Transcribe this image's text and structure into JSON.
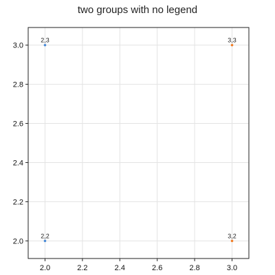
{
  "chart_data": {
    "type": "scatter",
    "title": "two groups with no legend",
    "xlabel": "",
    "ylabel": "",
    "xlim": [
      1.91,
      3.09
    ],
    "ylim": [
      1.91,
      3.09
    ],
    "x_ticks": [
      2.0,
      2.2,
      2.4,
      2.6,
      2.8,
      3.0
    ],
    "y_ticks": [
      2.0,
      2.2,
      2.4,
      2.6,
      2.8,
      3.0
    ],
    "x_tick_labels": [
      "2.0",
      "2.2",
      "2.4",
      "2.6",
      "2.8",
      "3.0"
    ],
    "y_tick_labels": [
      "2.0",
      "2.2",
      "2.4",
      "2.6",
      "2.8",
      "3.0"
    ],
    "grid": true,
    "legend": "none",
    "series": [
      {
        "color": "#4c8bd6",
        "points": [
          {
            "x": 2,
            "y": 3,
            "label": "2,3"
          },
          {
            "x": 2,
            "y": 2,
            "label": "2,2"
          }
        ]
      },
      {
        "color": "#f07f2a",
        "points": [
          {
            "x": 3,
            "y": 3,
            "label": "3,3"
          },
          {
            "x": 3,
            "y": 2,
            "label": "3,2"
          }
        ]
      }
    ]
  }
}
